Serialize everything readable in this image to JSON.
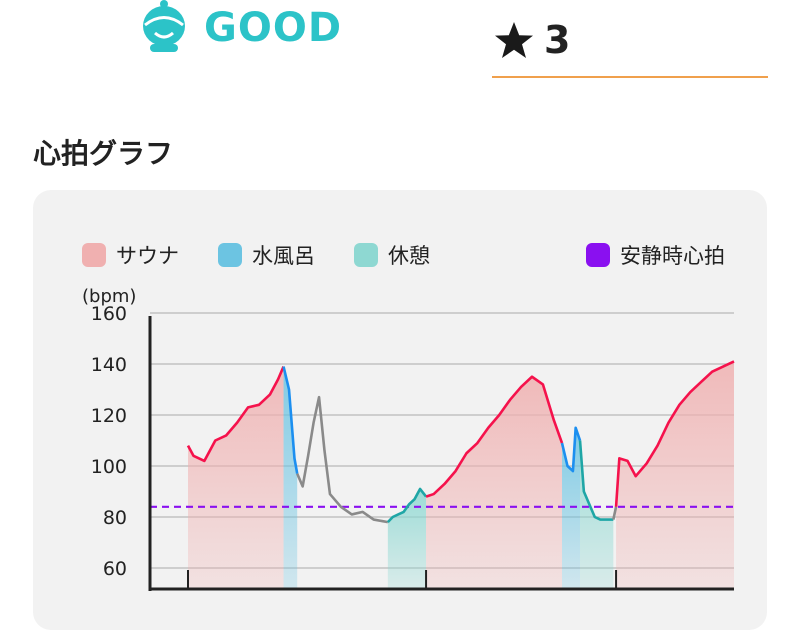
{
  "status": {
    "icon": "smiling-face-icon",
    "label": "GOOD",
    "color": "#2cc3c8"
  },
  "rating": {
    "icon": "star-icon",
    "value": "3"
  },
  "section": {
    "title": "心拍グラフ"
  },
  "legend": {
    "sauna": {
      "label": "サウナ",
      "color": "#f0b0b0"
    },
    "cold": {
      "label": "水風呂",
      "color": "#6cc4e2"
    },
    "rest": {
      "label": "休憩",
      "color": "#8ed8d2"
    },
    "resting": {
      "label": "安静時心拍",
      "color": "#8a10f0"
    }
  },
  "chart_data": {
    "type": "line",
    "ylabel": "(bpm)",
    "ylim": [
      60,
      160
    ],
    "yticks": [
      "160",
      "140",
      "120",
      "100",
      "80",
      "60"
    ],
    "resting_heart_rate": 84,
    "x_range": [
      0,
      100
    ],
    "segments": [
      {
        "phase": "sauna",
        "x": [
          0,
          17.5
        ],
        "color": "#f5124c"
      },
      {
        "phase": "cold",
        "x": [
          17.5,
          20
        ],
        "color": "#1c8ff0"
      },
      {
        "phase": "transition",
        "x": [
          20,
          36.6
        ],
        "color": "#8a8a8a"
      },
      {
        "phase": "rest",
        "x": [
          36.6,
          43.6
        ],
        "color": "#1fa6a6"
      },
      {
        "phase": "sauna",
        "x": [
          43.6,
          68.5
        ],
        "color": "#f5124c"
      },
      {
        "phase": "cold",
        "x": [
          68.5,
          71.8
        ],
        "color": "#1c8ff0"
      },
      {
        "phase": "rest",
        "x": [
          71.8,
          77.9
        ],
        "color": "#1fa6a6"
      },
      {
        "phase": "transition",
        "x": [
          77.9,
          78.4
        ],
        "color": "#8a8a8a"
      },
      {
        "phase": "sauna",
        "x": [
          78.4,
          100
        ],
        "color": "#f5124c"
      }
    ],
    "series": [
      {
        "x": [
          0,
          1,
          3,
          5,
          7,
          9,
          11,
          13,
          15,
          16.5,
          17.5,
          18.5,
          19.5,
          20,
          21,
          22,
          23,
          24,
          25,
          26,
          28,
          30,
          32,
          34,
          36.6,
          37.5,
          38.5,
          39.5,
          40.5,
          41.5,
          42.5,
          43.6,
          45,
          47,
          49,
          51,
          53,
          55,
          57,
          59,
          61,
          63,
          65,
          67,
          68.5,
          69.5,
          70.5,
          71,
          71.8,
          72.5,
          73.5,
          74.5,
          75.5,
          76.5,
          77.9,
          78.4,
          79,
          80.5,
          82,
          84,
          86,
          88,
          90,
          92,
          94,
          96,
          98,
          100
        ],
        "y": [
          108,
          104,
          102,
          110,
          112,
          117,
          123,
          124,
          128,
          134,
          139,
          130,
          103,
          97,
          92,
          104,
          117,
          127,
          106,
          89,
          84,
          81,
          82,
          79,
          78,
          80,
          81,
          82,
          85,
          87,
          91,
          88,
          89,
          93,
          98,
          105,
          109,
          115,
          120,
          126,
          131,
          135,
          132,
          118,
          109,
          100,
          98,
          115,
          110,
          90,
          85,
          80,
          79,
          79,
          79,
          84,
          103,
          102,
          96,
          101,
          108,
          117,
          124,
          129,
          133,
          137,
          139,
          141
        ]
      }
    ]
  }
}
